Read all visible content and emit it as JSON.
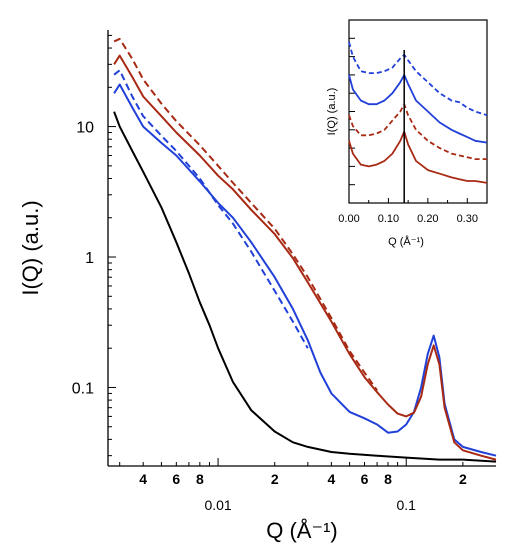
{
  "chart_data": [
    {
      "type": "line",
      "xscale": "log",
      "yscale": "log",
      "xlabel": "Q (Å⁻¹)",
      "ylabel": "I(Q) (a.u.)",
      "xlim": [
        0.0026,
        0.3
      ],
      "ylim": [
        0.025,
        55
      ],
      "x_tick_labels": [
        {
          "x": 0.004,
          "text": "4"
        },
        {
          "x": 0.006,
          "text": "6"
        },
        {
          "x": 0.008,
          "text": "8"
        },
        {
          "x": 0.01,
          "text": "0.01"
        },
        {
          "x": 0.02,
          "text": "2"
        },
        {
          "x": 0.04,
          "text": "4"
        },
        {
          "x": 0.06,
          "text": "6"
        },
        {
          "x": 0.08,
          "text": "8"
        },
        {
          "x": 0.1,
          "text": "0.1"
        },
        {
          "x": 0.2,
          "text": "2"
        }
      ],
      "y_tick_labels": [
        {
          "y": 10,
          "text": "10"
        },
        {
          "y": 1,
          "text": "1"
        },
        {
          "y": 0.1,
          "text": "0.1"
        }
      ],
      "series": [
        {
          "color": "#000000",
          "dash": "solid",
          "points": [
            [
              0.0028,
              13
            ],
            [
              0.003,
              10
            ],
            [
              0.0035,
              6.5
            ],
            [
              0.004,
              4.5
            ],
            [
              0.005,
              2.4
            ],
            [
              0.006,
              1.3
            ],
            [
              0.007,
              0.75
            ],
            [
              0.008,
              0.45
            ],
            [
              0.009,
              0.3
            ],
            [
              0.01,
              0.2
            ],
            [
              0.012,
              0.11
            ],
            [
              0.015,
              0.067
            ],
            [
              0.02,
              0.046
            ],
            [
              0.025,
              0.038
            ],
            [
              0.03,
              0.035
            ],
            [
              0.04,
              0.032
            ],
            [
              0.05,
              0.031
            ],
            [
              0.07,
              0.03
            ],
            [
              0.1,
              0.029
            ],
            [
              0.15,
              0.028
            ],
            [
              0.2,
              0.028
            ],
            [
              0.3,
              0.027
            ]
          ]
        },
        {
          "color": "#2040d8",
          "dash": "solid",
          "points": [
            [
              0.0028,
              18
            ],
            [
              0.003,
              21
            ],
            [
              0.0035,
              14
            ],
            [
              0.004,
              10
            ],
            [
              0.005,
              7.5
            ],
            [
              0.006,
              6
            ],
            [
              0.008,
              3.8
            ],
            [
              0.01,
              2.6
            ],
            [
              0.012,
              2.0
            ],
            [
              0.015,
              1.3
            ],
            [
              0.02,
              0.7
            ],
            [
              0.025,
              0.4
            ],
            [
              0.03,
              0.23
            ],
            [
              0.035,
              0.13
            ],
            [
              0.04,
              0.09
            ],
            [
              0.05,
              0.065
            ],
            [
              0.06,
              0.058
            ],
            [
              0.07,
              0.052
            ],
            [
              0.08,
              0.045
            ],
            [
              0.09,
              0.046
            ],
            [
              0.1,
              0.052
            ],
            [
              0.11,
              0.065
            ],
            [
              0.12,
              0.1
            ],
            [
              0.13,
              0.18
            ],
            [
              0.14,
              0.25
            ],
            [
              0.15,
              0.17
            ],
            [
              0.16,
              0.075
            ],
            [
              0.18,
              0.04
            ],
            [
              0.2,
              0.035
            ],
            [
              0.25,
              0.032
            ],
            [
              0.3,
              0.03
            ]
          ]
        },
        {
          "color": "#2040d8",
          "dash": "dashed",
          "points": [
            [
              0.0028,
              25
            ],
            [
              0.003,
              27
            ],
            [
              0.0035,
              17
            ],
            [
              0.004,
              12
            ],
            [
              0.005,
              8.5
            ],
            [
              0.006,
              6.5
            ],
            [
              0.008,
              4
            ],
            [
              0.01,
              2.5
            ],
            [
              0.012,
              1.8
            ],
            [
              0.015,
              1.1
            ],
            [
              0.02,
              0.55
            ],
            [
              0.025,
              0.32
            ],
            [
              0.03,
              0.2
            ]
          ]
        },
        {
          "color": "#a82a14",
          "dash": "solid",
          "points": [
            [
              0.0028,
              30
            ],
            [
              0.003,
              35
            ],
            [
              0.0035,
              24
            ],
            [
              0.004,
              17
            ],
            [
              0.005,
              12
            ],
            [
              0.006,
              9
            ],
            [
              0.008,
              6
            ],
            [
              0.01,
              4.2
            ],
            [
              0.012,
              3.3
            ],
            [
              0.015,
              2.3
            ],
            [
              0.02,
              1.5
            ],
            [
              0.025,
              0.98
            ],
            [
              0.03,
              0.64
            ],
            [
              0.04,
              0.32
            ],
            [
              0.05,
              0.18
            ],
            [
              0.06,
              0.12
            ],
            [
              0.07,
              0.092
            ],
            [
              0.08,
              0.074
            ],
            [
              0.09,
              0.063
            ],
            [
              0.1,
              0.06
            ],
            [
              0.11,
              0.064
            ],
            [
              0.12,
              0.085
            ],
            [
              0.13,
              0.15
            ],
            [
              0.14,
              0.21
            ],
            [
              0.15,
              0.15
            ],
            [
              0.16,
              0.07
            ],
            [
              0.18,
              0.038
            ],
            [
              0.2,
              0.033
            ],
            [
              0.25,
              0.03
            ],
            [
              0.3,
              0.028
            ]
          ]
        },
        {
          "color": "#a82a14",
          "dash": "dashed",
          "points": [
            [
              0.0028,
              45
            ],
            [
              0.003,
              47
            ],
            [
              0.0035,
              33
            ],
            [
              0.004,
              23
            ],
            [
              0.005,
              15
            ],
            [
              0.006,
              11
            ],
            [
              0.008,
              7.2
            ],
            [
              0.01,
              5.0
            ],
            [
              0.012,
              3.7
            ],
            [
              0.015,
              2.6
            ],
            [
              0.02,
              1.65
            ],
            [
              0.025,
              1.05
            ],
            [
              0.03,
              0.7
            ],
            [
              0.04,
              0.34
            ],
            [
              0.05,
              0.19
            ],
            [
              0.06,
              0.13
            ],
            [
              0.07,
              0.095
            ]
          ]
        }
      ]
    },
    {
      "type": "line",
      "inset": true,
      "xscale": "linear",
      "yscale": "linear",
      "xlabel": "Q (Å⁻¹)",
      "ylabel": "I(Q) (a.u.)",
      "xlim": [
        0,
        0.35
      ],
      "ylim": [
        0,
        1
      ],
      "x_tick_labels": [
        {
          "x": 0.0,
          "text": "0.00"
        },
        {
          "x": 0.1,
          "text": "0.10"
        },
        {
          "x": 0.2,
          "text": "0.20"
        },
        {
          "x": 0.3,
          "text": "0.30"
        }
      ],
      "y_ticks": [
        0.1,
        0.2,
        0.3,
        0.4,
        0.5,
        0.6,
        0.7,
        0.8,
        0.9
      ],
      "vline_x": 0.14,
      "series": [
        {
          "color": "#2040d8",
          "dash": "dashed",
          "points": [
            [
              0.0,
              0.88
            ],
            [
              0.01,
              0.8
            ],
            [
              0.03,
              0.72
            ],
            [
              0.05,
              0.71
            ],
            [
              0.07,
              0.71
            ],
            [
              0.09,
              0.72
            ],
            [
              0.11,
              0.74
            ],
            [
              0.13,
              0.79
            ],
            [
              0.14,
              0.81
            ],
            [
              0.15,
              0.78
            ],
            [
              0.17,
              0.72
            ],
            [
              0.2,
              0.66
            ],
            [
              0.23,
              0.6
            ],
            [
              0.26,
              0.56
            ],
            [
              0.28,
              0.55
            ],
            [
              0.3,
              0.52
            ],
            [
              0.32,
              0.5
            ],
            [
              0.35,
              0.48
            ]
          ]
        },
        {
          "color": "#2040d8",
          "dash": "solid",
          "points": [
            [
              0.0,
              0.7
            ],
            [
              0.01,
              0.62
            ],
            [
              0.03,
              0.56
            ],
            [
              0.05,
              0.54
            ],
            [
              0.07,
              0.54
            ],
            [
              0.09,
              0.56
            ],
            [
              0.11,
              0.6
            ],
            [
              0.13,
              0.66
            ],
            [
              0.14,
              0.7
            ],
            [
              0.15,
              0.65
            ],
            [
              0.17,
              0.56
            ],
            [
              0.2,
              0.5
            ],
            [
              0.23,
              0.44
            ],
            [
              0.26,
              0.4
            ],
            [
              0.28,
              0.38
            ],
            [
              0.3,
              0.36
            ],
            [
              0.32,
              0.34
            ],
            [
              0.35,
              0.33
            ]
          ]
        },
        {
          "color": "#a82a14",
          "dash": "dashed",
          "points": [
            [
              0.0,
              0.48
            ],
            [
              0.01,
              0.42
            ],
            [
              0.03,
              0.37
            ],
            [
              0.05,
              0.37
            ],
            [
              0.07,
              0.38
            ],
            [
              0.09,
              0.4
            ],
            [
              0.11,
              0.45
            ],
            [
              0.13,
              0.5
            ],
            [
              0.14,
              0.54
            ],
            [
              0.15,
              0.48
            ],
            [
              0.17,
              0.4
            ],
            [
              0.2,
              0.34
            ],
            [
              0.23,
              0.3
            ],
            [
              0.26,
              0.27
            ],
            [
              0.28,
              0.26
            ],
            [
              0.3,
              0.25
            ],
            [
              0.32,
              0.24
            ],
            [
              0.35,
              0.24
            ]
          ]
        },
        {
          "color": "#a82a14",
          "dash": "solid",
          "points": [
            [
              0.0,
              0.34
            ],
            [
              0.01,
              0.27
            ],
            [
              0.03,
              0.21
            ],
            [
              0.05,
              0.2
            ],
            [
              0.07,
              0.21
            ],
            [
              0.09,
              0.23
            ],
            [
              0.11,
              0.27
            ],
            [
              0.13,
              0.34
            ],
            [
              0.14,
              0.39
            ],
            [
              0.15,
              0.32
            ],
            [
              0.17,
              0.23
            ],
            [
              0.2,
              0.18
            ],
            [
              0.23,
              0.16
            ],
            [
              0.26,
              0.14
            ],
            [
              0.28,
              0.13
            ],
            [
              0.3,
              0.12
            ],
            [
              0.32,
              0.12
            ],
            [
              0.35,
              0.11
            ]
          ]
        }
      ]
    }
  ]
}
